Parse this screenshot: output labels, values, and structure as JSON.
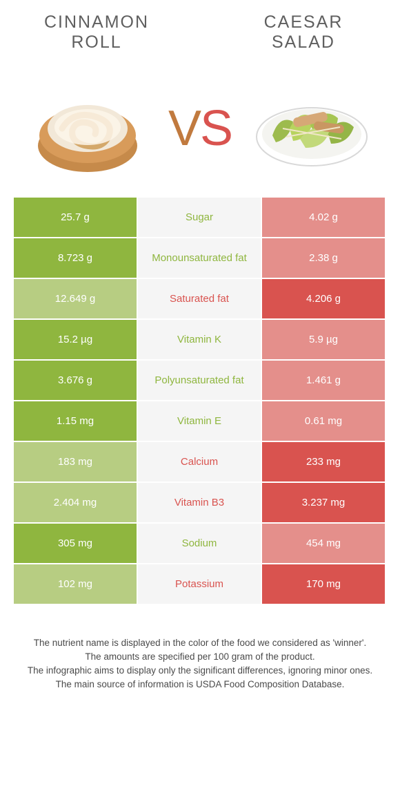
{
  "titles": {
    "left": "CINNAMON ROLL",
    "right": "CAESAR SALAD"
  },
  "vs": {
    "v": "V",
    "s": "S"
  },
  "colors": {
    "left_win": "#8fb63f",
    "left_lose": "#b7cd82",
    "right_win": "#d9534f",
    "right_lose": "#e48f8b",
    "mid_bg": "#f5f5f5"
  },
  "rows": [
    {
      "left": "25.7 g",
      "label": "Sugar",
      "right": "4.02 g",
      "winner": "left"
    },
    {
      "left": "8.723 g",
      "label": "Monounsaturated fat",
      "right": "2.38 g",
      "winner": "left"
    },
    {
      "left": "12.649 g",
      "label": "Saturated fat",
      "right": "4.206 g",
      "winner": "right"
    },
    {
      "left": "15.2 µg",
      "label": "Vitamin K",
      "right": "5.9 µg",
      "winner": "left"
    },
    {
      "left": "3.676 g",
      "label": "Polyunsaturated fat",
      "right": "1.461 g",
      "winner": "left"
    },
    {
      "left": "1.15 mg",
      "label": "Vitamin E",
      "right": "0.61 mg",
      "winner": "left"
    },
    {
      "left": "183 mg",
      "label": "Calcium",
      "right": "233 mg",
      "winner": "right"
    },
    {
      "left": "2.404 mg",
      "label": "Vitamin B3",
      "right": "3.237 mg",
      "winner": "right"
    },
    {
      "left": "305 mg",
      "label": "Sodium",
      "right": "454 mg",
      "winner": "left"
    },
    {
      "left": "102 mg",
      "label": "Potassium",
      "right": "170 mg",
      "winner": "right"
    }
  ],
  "footer": {
    "line1": "The nutrient name is displayed in the color of the food we considered as 'winner'.",
    "line2": "The amounts are specified per 100 gram of the product.",
    "line3": "The infographic aims to display only the significant differences, ignoring minor ones.",
    "line4": "The main source of information is USDA Food Composition Database."
  }
}
